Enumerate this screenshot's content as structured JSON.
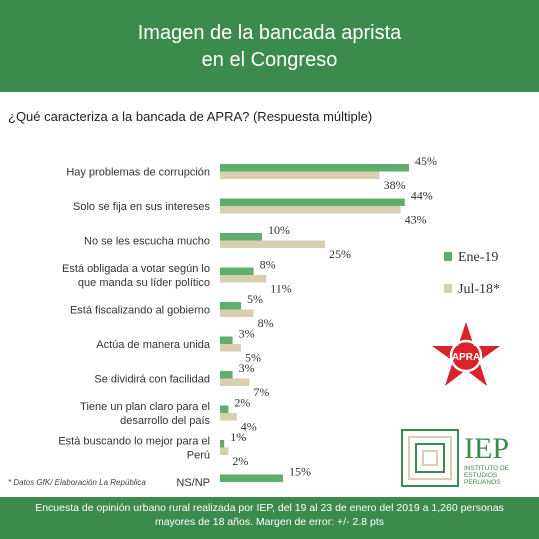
{
  "header": {
    "title": "Imagen de la bancada aprista\nen el Congreso"
  },
  "question": "¿Qué caracteriza a la bancada de APRA? (Respuesta múltiple)",
  "source": "* Datos GfK/ Elaboración La República",
  "footer": {
    "note": "Encuesta de opinión urbano rural realizada por IEP, del 19 al 23 de enero del 2019 a 1,260 personas\nmayores de 18 años. Margen de error: +/- 2.8 pts"
  },
  "colors": {
    "green": "#3c8b4e",
    "series_ene": "#5fae6e",
    "series_jul": "#d8ceb0",
    "red": "#d8232a"
  },
  "logos": {
    "iep_text": "IEP",
    "iep_subtext": "INSTITUTO DE\nESTUDIOS\nPERUANOS",
    "apra_text": "APRA"
  },
  "chart_data": {
    "type": "bar",
    "orientation": "horizontal",
    "categories": [
      "Hay problemas de corrupción",
      "Solo se fija en sus intereses",
      "No se les escucha mucho",
      "Está obligada a votar según lo que manda su líder político",
      "Está fiscalizando al gobierno",
      "Actúa de manera unida",
      "Se dividirá con facilidad",
      "Tiene un plan claro para el desarrollo del país",
      "Está buscando lo mejor para el Perú",
      "NS/NP"
    ],
    "series": [
      {
        "name": "Ene-19",
        "color": "#5fae6e",
        "values": [
          45,
          44,
          10,
          8,
          5,
          3,
          3,
          2,
          1,
          15
        ]
      },
      {
        "name": "Jul-18*",
        "color": "#d8ceb0",
        "values": [
          38,
          43,
          25,
          11,
          8,
          5,
          7,
          4,
          2,
          null
        ]
      }
    ],
    "value_suffix": "%",
    "legend_position": "right",
    "grid": false
  }
}
